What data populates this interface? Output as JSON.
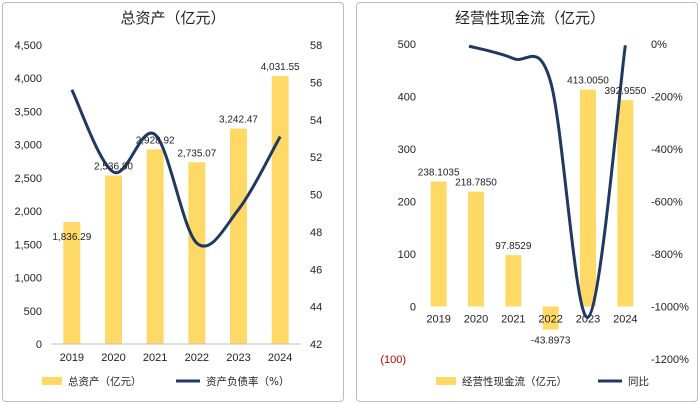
{
  "colors": {
    "bar": "#FFD966",
    "line": "#1F3864",
    "negative_text": "#C00000",
    "text": "#222222"
  },
  "chart_data": [
    {
      "type": "bar+line",
      "title": "总资产（亿元）",
      "categories": [
        "2019",
        "2020",
        "2021",
        "2022",
        "2023",
        "2024"
      ],
      "series": [
        {
          "name": "总资产（亿元）",
          "kind": "bar",
          "axis": "left",
          "values": [
            1836.29,
            2536.8,
            2928.92,
            2735.07,
            3242.47,
            4031.55
          ],
          "labels": [
            "1,836.29",
            "2,536.80",
            "2,928.92",
            "2,735.07",
            "3,242.47",
            "4,031.55"
          ]
        },
        {
          "name": "资产负债率（%）",
          "kind": "line",
          "axis": "right",
          "values": [
            55.6,
            51.2,
            53.2,
            47.4,
            49.2,
            53.1
          ]
        }
      ],
      "y_left": {
        "min": 0,
        "max": 4500,
        "step": 500,
        "ticks": [
          "0",
          "500",
          "1,000",
          "1,500",
          "2,000",
          "2,500",
          "3,000",
          "3,500",
          "4,000",
          "4,500"
        ]
      },
      "y_right": {
        "min": 42,
        "max": 58,
        "step": 2,
        "ticks": [
          "42",
          "44",
          "46",
          "48",
          "50",
          "52",
          "54",
          "56",
          "58"
        ]
      },
      "legend": [
        "总资产（亿元）",
        "资产负债率（%）"
      ],
      "legend_position": "bottom"
    },
    {
      "type": "bar+line",
      "title": "经营性现金流（亿元）",
      "categories": [
        "2019",
        "2020",
        "2021",
        "2022",
        "2023",
        "2024"
      ],
      "series": [
        {
          "name": "经营性现金流（亿元）",
          "kind": "bar",
          "axis": "left",
          "values": [
            238.1035,
            218.785,
            97.8529,
            -43.8973,
            413.005,
            392.955
          ],
          "labels": [
            "238.1035",
            "218.7850",
            "97.8529",
            "-43.8973",
            "413.0050",
            "392.9550"
          ]
        },
        {
          "name": "同比",
          "kind": "line",
          "axis": "right",
          "unit": "%",
          "values": [
            null,
            -8.1,
            -55.3,
            -144.9,
            -1040.9,
            -4.9
          ]
        }
      ],
      "y_left": {
        "min": -100,
        "max": 500,
        "step": 100,
        "ticks": [
          "(100)",
          "0",
          "100",
          "200",
          "300",
          "400",
          "500"
        ]
      },
      "y_right": {
        "min": -1200,
        "max": 0,
        "step": 200,
        "ticks": [
          "-1200%",
          "-1000%",
          "-800%",
          "-600%",
          "-400%",
          "-200%",
          "0%"
        ]
      },
      "legend": [
        "经营性现金流（亿元）",
        "同比"
      ],
      "legend_position": "bottom"
    }
  ]
}
